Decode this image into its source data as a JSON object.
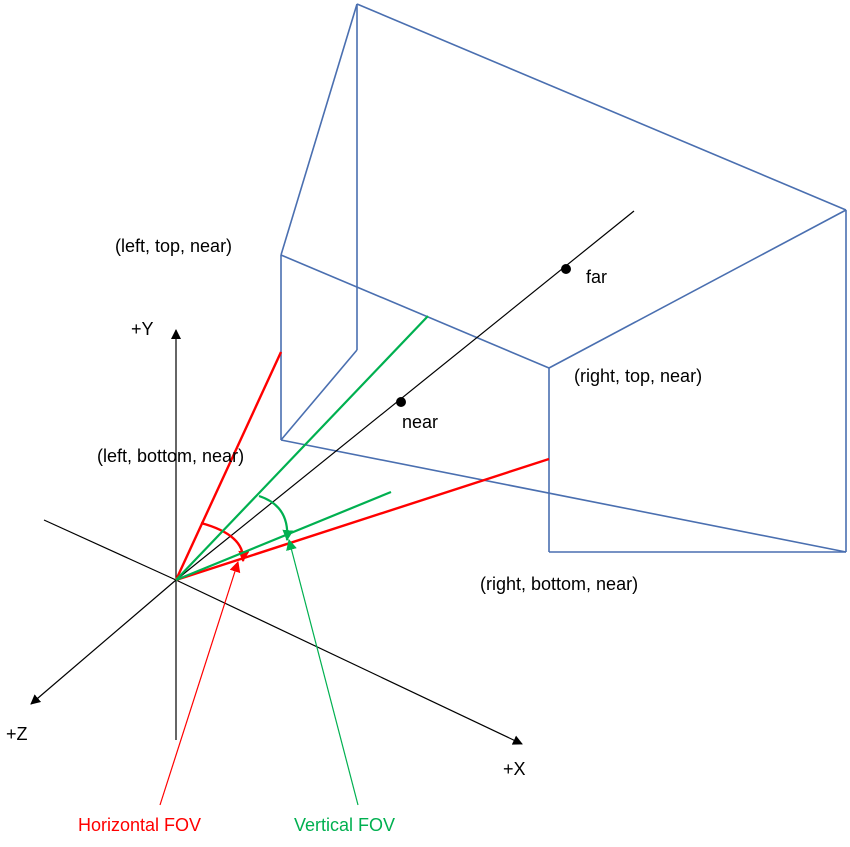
{
  "colors": {
    "frustum": "#4a6fb0",
    "axis": "#000000",
    "horizontal_fov": "#ff0000",
    "vertical_fov": "#00b050",
    "background": "#ffffff"
  },
  "labels": {
    "left_top_near": "(left, top, near)",
    "left_bottom_near": "(left, bottom, near)",
    "right_top_near": "(right, top, near)",
    "right_bottom_near": "(right, bottom, near)",
    "far": "far",
    "near": "near",
    "axis_y": "+Y",
    "axis_z": "+Z",
    "axis_x": "+X",
    "horizontal_fov": "Horizontal FOV",
    "vertical_fov": "Vertical FOV"
  }
}
